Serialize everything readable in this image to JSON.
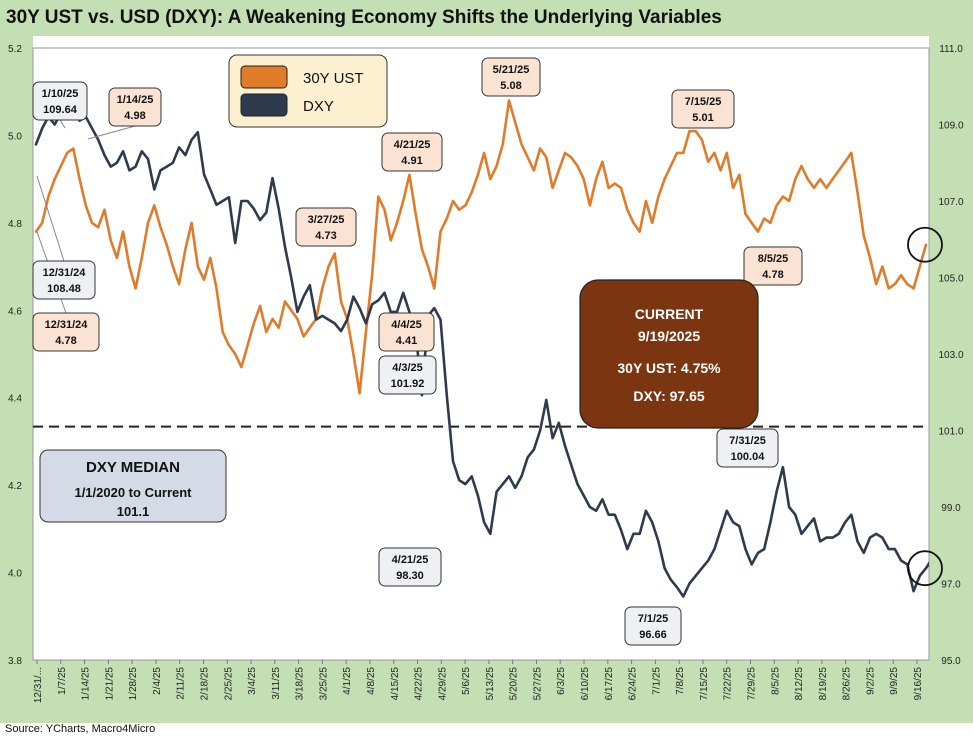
{
  "title": "30Y UST vs. USD (DXY): A Weakening Economy Shifts the Underlying Variables",
  "source": "Source: YCharts, Macro4Micro",
  "colors": {
    "ust": "#e07b29",
    "dxy": "#2f3a4d",
    "bg_green": "#c5dfb4",
    "current_box": "#7b3511"
  },
  "chart_data": {
    "type": "line",
    "title": "30Y UST vs. USD (DXY): A Weakening Economy Shifts the Underlying Variables",
    "x_ticks": [
      "12/31/...",
      "1/7/25",
      "1/14/25",
      "1/21/25",
      "1/28/25",
      "2/4/25",
      "2/11/25",
      "2/18/25",
      "2/25/25",
      "3/4/25",
      "3/11/25",
      "3/18/25",
      "3/25/25",
      "4/1/25",
      "4/8/25",
      "4/15/25",
      "4/22/25",
      "4/29/25",
      "5/6/25",
      "5/13/25",
      "5/20/25",
      "5/27/25",
      "6/3/25",
      "6/10/25",
      "6/17/25",
      "6/24/25",
      "7/1/25",
      "7/8/25",
      "7/15/25",
      "7/22/25",
      "7/29/25",
      "8/5/25",
      "8/12/25",
      "8/19/25",
      "8/26/25",
      "9/2/25",
      "9/9/25",
      "9/16/25"
    ],
    "y_left": {
      "ticks": [
        "5.2",
        "5.0",
        "4.8",
        "4.6",
        "4.4",
        "4.2",
        "4.0",
        "3.8"
      ],
      "range": [
        3.8,
        5.2
      ]
    },
    "y_right": {
      "ticks": [
        "111.0",
        "109.0",
        "107.0",
        "105.0",
        "103.0",
        "101.0",
        "99.0",
        "97.0",
        "95.0"
      ],
      "range": [
        95.0,
        111.0
      ]
    },
    "series": [
      {
        "name": "30Y UST",
        "axis": "left",
        "color": "#e07b29",
        "values": [
          4.78,
          4.8,
          4.86,
          4.9,
          4.93,
          4.96,
          4.97,
          4.9,
          4.84,
          4.8,
          4.79,
          4.83,
          4.76,
          4.72,
          4.78,
          4.7,
          4.65,
          4.72,
          4.8,
          4.84,
          4.79,
          4.75,
          4.7,
          4.66,
          4.74,
          4.8,
          4.7,
          4.67,
          4.72,
          4.65,
          4.55,
          4.52,
          4.5,
          4.47,
          4.52,
          4.57,
          4.61,
          4.55,
          4.58,
          4.56,
          4.62,
          4.6,
          4.58,
          4.54,
          4.56,
          4.58,
          4.65,
          4.7,
          4.73,
          4.62,
          4.58,
          4.5,
          4.41,
          4.55,
          4.68,
          4.86,
          4.83,
          4.76,
          4.8,
          4.85,
          4.91,
          4.82,
          4.74,
          4.7,
          4.65,
          4.78,
          4.81,
          4.85,
          4.83,
          4.84,
          4.87,
          4.91,
          4.96,
          4.9,
          4.93,
          4.98,
          5.08,
          5.03,
          4.98,
          4.95,
          4.92,
          4.97,
          4.95,
          4.88,
          4.92,
          4.96,
          4.95,
          4.93,
          4.9,
          4.84,
          4.9,
          4.94,
          4.88,
          4.89,
          4.88,
          4.83,
          4.8,
          4.78,
          4.85,
          4.8,
          4.86,
          4.9,
          4.93,
          4.96,
          4.96,
          5.01,
          5.01,
          4.99,
          4.94,
          4.96,
          4.92,
          4.96,
          4.88,
          4.91,
          4.82,
          4.8,
          4.78,
          4.81,
          4.8,
          4.84,
          4.86,
          4.85,
          4.9,
          4.93,
          4.9,
          4.88,
          4.9,
          4.88,
          4.9,
          4.92,
          4.94,
          4.96,
          4.87,
          4.77,
          4.72,
          4.66,
          4.7,
          4.65,
          4.66,
          4.68,
          4.66,
          4.65,
          4.7,
          4.75
        ]
      },
      {
        "name": "DXY",
        "axis": "right",
        "color": "#2f3a4d",
        "values": [
          108.48,
          108.9,
          109.2,
          109.0,
          109.3,
          109.64,
          109.5,
          109.1,
          109.2,
          108.9,
          108.6,
          108.2,
          107.9,
          108.0,
          108.3,
          107.8,
          107.9,
          108.3,
          108.1,
          107.3,
          107.8,
          107.9,
          108.0,
          108.4,
          108.2,
          108.6,
          108.8,
          107.7,
          107.3,
          106.9,
          107.0,
          107.1,
          105.9,
          107.0,
          107.0,
          106.8,
          106.5,
          106.7,
          107.6,
          106.8,
          105.8,
          105.0,
          104.1,
          104.5,
          104.8,
          103.9,
          104.0,
          103.9,
          103.8,
          103.6,
          103.9,
          104.5,
          104.2,
          103.8,
          104.3,
          104.4,
          104.6,
          104.1,
          104.1,
          104.6,
          104.1,
          103.6,
          101.92,
          104.0,
          104.2,
          103.9,
          101.92,
          100.2,
          99.7,
          99.6,
          99.8,
          99.3,
          98.6,
          98.3,
          99.4,
          99.6,
          99.8,
          99.5,
          99.8,
          100.3,
          100.5,
          101.0,
          101.8,
          100.8,
          101.2,
          100.6,
          100.1,
          99.6,
          99.3,
          99.0,
          98.9,
          99.2,
          98.8,
          98.8,
          98.4,
          97.9,
          98.3,
          98.3,
          98.9,
          98.6,
          98.1,
          97.4,
          97.1,
          96.9,
          96.66,
          97.0,
          97.2,
          97.4,
          97.6,
          97.9,
          98.4,
          98.9,
          98.6,
          98.5,
          97.9,
          97.5,
          97.8,
          97.9,
          98.6,
          99.4,
          100.04,
          99.0,
          98.8,
          98.3,
          98.5,
          98.7,
          98.1,
          98.2,
          98.2,
          98.3,
          98.6,
          98.8,
          98.1,
          97.8,
          98.2,
          98.3,
          98.2,
          97.9,
          97.9,
          97.6,
          97.5,
          96.8,
          97.2,
          97.4,
          97.65
        ]
      }
    ],
    "median_line": {
      "axis": "right",
      "value": 101.1
    },
    "annotations": {
      "dxy_1_10": {
        "date": "1/10/25",
        "value": "109.64"
      },
      "ust_1_14": {
        "date": "1/14/25",
        "value": "4.98"
      },
      "dxy_12_31": {
        "date": "12/31/24",
        "value": "108.48"
      },
      "ust_12_31": {
        "date": "12/31/24",
        "value": "4.78"
      },
      "ust_3_27": {
        "date": "3/27/25",
        "value": "4.73"
      },
      "ust_4_21": {
        "date": "4/21/25",
        "value": "4.91"
      },
      "ust_5_21": {
        "date": "5/21/25",
        "value": "5.08"
      },
      "ust_7_15": {
        "date": "7/15/25",
        "value": "5.01"
      },
      "ust_8_5": {
        "date": "8/5/25",
        "value": "4.78"
      },
      "ust_4_4": {
        "date": "4/4/25",
        "value": "4.41"
      },
      "dxy_4_3": {
        "date": "4/3/25",
        "value": "101.92"
      },
      "dxy_4_21": {
        "date": "4/21/25",
        "value": "98.30"
      },
      "dxy_7_1": {
        "date": "7/1/25",
        "value": "96.66"
      },
      "dxy_7_31": {
        "date": "7/31/25",
        "value": "100.04"
      }
    },
    "legend": {
      "items": [
        "30Y UST",
        "DXY"
      ],
      "position": "top-left"
    },
    "current_box": {
      "heading": "CURRENT",
      "date": "9/19/2025",
      "ust": "30Y UST:  4.75%",
      "dxy": "DXY:  97.65"
    },
    "median_box": {
      "heading": "DXY MEDIAN",
      "period": "1/1/2020 to Current",
      "value": "101.1"
    }
  }
}
